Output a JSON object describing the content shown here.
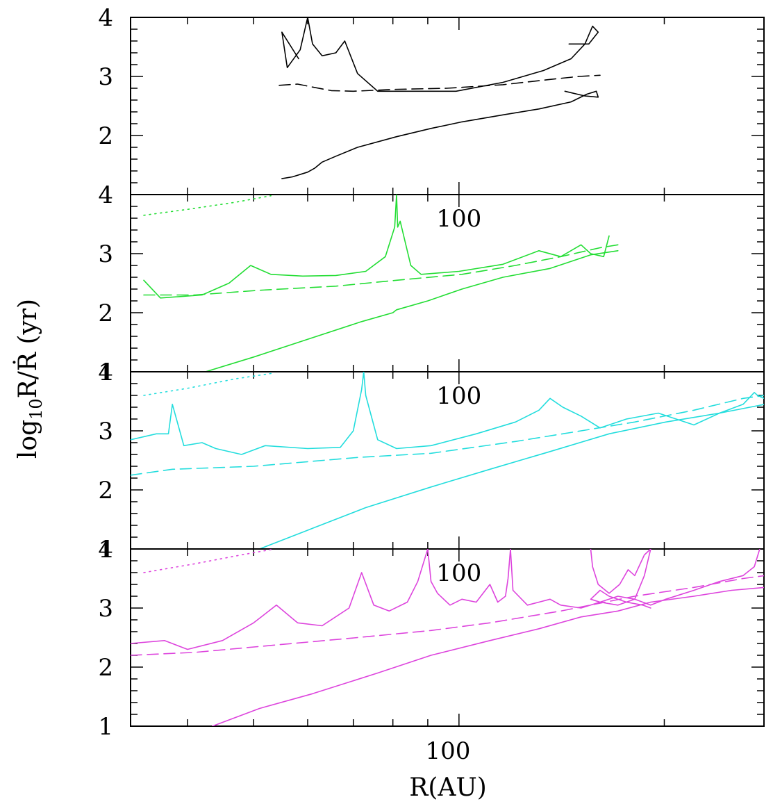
{
  "chart_data": [
    {
      "type": "line",
      "panel": 1,
      "color": "#000000",
      "xscale": "log",
      "xlim": [
        33,
        280
      ],
      "ylim": [
        1,
        4
      ],
      "x_tick_labels": [],
      "y_tick_labels": [
        "2",
        "3",
        "4"
      ],
      "series": [
        {
          "name": "upper",
          "style": "solid",
          "points": [
            [
              55,
              3.75
            ],
            [
              56,
              3.15
            ],
            [
              58.5,
              3.45
            ],
            [
              60,
              4.0
            ],
            [
              61,
              3.55
            ],
            [
              63,
              3.35
            ],
            [
              66,
              3.4
            ],
            [
              68,
              3.6
            ],
            [
              71,
              3.05
            ],
            [
              76,
              2.75
            ],
            [
              86,
              2.75
            ],
            [
              99,
              2.75
            ],
            [
              116,
              2.9
            ],
            [
              133,
              3.1
            ],
            [
              146,
              3.3
            ],
            [
              153,
              3.55
            ],
            [
              157,
              3.85
            ],
            [
              160,
              3.75
            ],
            [
              155,
              3.55
            ],
            [
              145,
              3.55
            ]
          ]
        },
        {
          "name": "upper-diagonal",
          "style": "solid",
          "points": [
            [
              55,
              3.75
            ],
            [
              58.2,
              3.3
            ]
          ]
        },
        {
          "name": "dashed",
          "style": "dashed",
          "points": [
            [
              54.5,
              2.85
            ],
            [
              58,
              2.87
            ],
            [
              61,
              2.82
            ],
            [
              65,
              2.76
            ],
            [
              70,
              2.75
            ],
            [
              80,
              2.78
            ],
            [
              96,
              2.8
            ],
            [
              116,
              2.86
            ],
            [
              136,
              2.95
            ],
            [
              150,
              3.0
            ],
            [
              161,
              3.02
            ]
          ]
        },
        {
          "name": "lower",
          "style": "solid",
          "points": [
            [
              55,
              1.27
            ],
            [
              57,
              1.3
            ],
            [
              60,
              1.38
            ],
            [
              61.5,
              1.45
            ],
            [
              63,
              1.55
            ],
            [
              66,
              1.65
            ],
            [
              71,
              1.8
            ],
            [
              81,
              1.98
            ],
            [
              91,
              2.12
            ],
            [
              101,
              2.23
            ],
            [
              116,
              2.35
            ],
            [
              131,
              2.45
            ],
            [
              146,
              2.57
            ],
            [
              154,
              2.7
            ],
            [
              159,
              2.75
            ],
            [
              160,
              2.65
            ],
            [
              153,
              2.67
            ],
            [
              143,
              2.75
            ]
          ]
        }
      ]
    },
    {
      "type": "line",
      "panel": 2,
      "color": "#22dd33",
      "xscale": "log",
      "xlim": [
        33,
        280
      ],
      "ylim": [
        1,
        4
      ],
      "x_tick_labels": [
        "100"
      ],
      "y_tick_labels": [
        "1",
        "2",
        "3",
        "4"
      ],
      "series": [
        {
          "name": "dotted",
          "style": "dotted",
          "points": [
            [
              34.5,
              3.65
            ],
            [
              40,
              3.75
            ],
            [
              47,
              3.87
            ],
            [
              53,
              3.98
            ]
          ]
        },
        {
          "name": "upper",
          "style": "solid",
          "points": [
            [
              34.5,
              2.55
            ],
            [
              36.5,
              2.25
            ],
            [
              42,
              2.3
            ],
            [
              46,
              2.5
            ],
            [
              49.5,
              2.8
            ],
            [
              53,
              2.65
            ],
            [
              59,
              2.62
            ],
            [
              66,
              2.63
            ],
            [
              73,
              2.7
            ],
            [
              78,
              2.95
            ],
            [
              80.5,
              3.45
            ],
            [
              81,
              4.0
            ],
            [
              81.3,
              3.45
            ],
            [
              82,
              3.55
            ],
            [
              85,
              2.8
            ],
            [
              88,
              2.65
            ],
            [
              100,
              2.7
            ],
            [
              116,
              2.82
            ],
            [
              131,
              3.05
            ],
            [
              141,
              2.95
            ],
            [
              151,
              3.15
            ],
            [
              156,
              3.0
            ],
            [
              163,
              2.95
            ],
            [
              166,
              3.3
            ]
          ]
        },
        {
          "name": "dashed",
          "style": "dashed",
          "points": [
            [
              34.5,
              2.3
            ],
            [
              41,
              2.3
            ],
            [
              51,
              2.38
            ],
            [
              66,
              2.45
            ],
            [
              81,
              2.55
            ],
            [
              101,
              2.65
            ],
            [
              121,
              2.8
            ],
            [
              141,
              2.95
            ],
            [
              161,
              3.1
            ],
            [
              171,
              3.15
            ]
          ]
        },
        {
          "name": "lower",
          "style": "solid",
          "points": [
            [
              42.5,
              1.0
            ],
            [
              50,
              1.25
            ],
            [
              60,
              1.55
            ],
            [
              72,
              1.85
            ],
            [
              80,
              2.0
            ],
            [
              81,
              2.05
            ],
            [
              90,
              2.2
            ],
            [
              101,
              2.4
            ],
            [
              116,
              2.6
            ],
            [
              136,
              2.75
            ],
            [
              156,
              2.98
            ],
            [
              171,
              3.05
            ]
          ]
        }
      ]
    },
    {
      "type": "line",
      "panel": 3,
      "color": "#22dddd",
      "xscale": "log",
      "xlim": [
        33,
        280
      ],
      "ylim": [
        1,
        4
      ],
      "x_tick_labels": [
        "100"
      ],
      "y_tick_labels": [
        "1",
        "2",
        "3",
        "4"
      ],
      "series": [
        {
          "name": "dotted",
          "style": "dotted",
          "points": [
            [
              34.5,
              3.6
            ],
            [
              40,
              3.72
            ],
            [
              47,
              3.88
            ],
            [
              53,
              3.97
            ]
          ]
        },
        {
          "name": "upper",
          "style": "solid",
          "points": [
            [
              33,
              2.85
            ],
            [
              36,
              2.95
            ],
            [
              37.5,
              2.95
            ],
            [
              38,
              3.45
            ],
            [
              39.5,
              2.75
            ],
            [
              42,
              2.8
            ],
            [
              44,
              2.7
            ],
            [
              48,
              2.6
            ],
            [
              52,
              2.75
            ],
            [
              60,
              2.7
            ],
            [
              67,
              2.72
            ],
            [
              70,
              3.0
            ],
            [
              72,
              3.7
            ],
            [
              72.5,
              4.0
            ],
            [
              73,
              3.6
            ],
            [
              76,
              2.85
            ],
            [
              81,
              2.7
            ],
            [
              91,
              2.75
            ],
            [
              106,
              2.95
            ],
            [
              121,
              3.15
            ],
            [
              131,
              3.35
            ],
            [
              136,
              3.55
            ],
            [
              142,
              3.4
            ],
            [
              151,
              3.25
            ],
            [
              161,
              3.05
            ],
            [
              176,
              3.2
            ],
            [
              196,
              3.3
            ],
            [
              221,
              3.1
            ],
            [
              241,
              3.3
            ],
            [
              261,
              3.45
            ],
            [
              271,
              3.65
            ],
            [
              274,
              3.6
            ],
            [
              280,
              3.55
            ]
          ]
        },
        {
          "name": "dashed",
          "style": "dashed",
          "points": [
            [
              33,
              2.25
            ],
            [
              38,
              2.35
            ],
            [
              50,
              2.4
            ],
            [
              71,
              2.55
            ],
            [
              91,
              2.62
            ],
            [
              121,
              2.82
            ],
            [
              151,
              3.0
            ],
            [
              181,
              3.15
            ],
            [
              221,
              3.35
            ],
            [
              261,
              3.55
            ],
            [
              281,
              3.6
            ]
          ]
        },
        {
          "name": "lower",
          "style": "solid",
          "points": [
            [
              51,
              1.0
            ],
            [
              61,
              1.35
            ],
            [
              73,
              1.7
            ],
            [
              91,
              2.05
            ],
            [
              111,
              2.35
            ],
            [
              136,
              2.65
            ],
            [
              166,
              2.95
            ],
            [
              201,
              3.15
            ],
            [
              241,
              3.3
            ],
            [
              281,
              3.45
            ]
          ]
        }
      ]
    },
    {
      "type": "line",
      "panel": 4,
      "color": "#dd44dd",
      "xscale": "log",
      "xlim": [
        33,
        280
      ],
      "ylim": [
        1,
        4
      ],
      "x_tick_labels": [
        "100"
      ],
      "y_tick_labels": [
        "1",
        "2",
        "3",
        "4"
      ],
      "series": [
        {
          "name": "dotted",
          "style": "dotted",
          "points": [
            [
              34.5,
              3.6
            ],
            [
              41,
              3.75
            ],
            [
              48,
              3.9
            ],
            [
              53,
              3.99
            ]
          ]
        },
        {
          "name": "upper",
          "style": "solid",
          "points": [
            [
              33,
              2.4
            ],
            [
              37,
              2.45
            ],
            [
              40,
              2.3
            ],
            [
              45,
              2.45
            ],
            [
              50,
              2.75
            ],
            [
              54,
              3.05
            ],
            [
              58,
              2.75
            ],
            [
              63,
              2.7
            ],
            [
              69,
              3.0
            ],
            [
              72,
              3.6
            ],
            [
              75,
              3.05
            ],
            [
              79,
              2.95
            ],
            [
              84,
              3.1
            ],
            [
              87,
              3.45
            ],
            [
              90,
              4.0
            ],
            [
              91,
              3.45
            ],
            [
              93,
              3.25
            ],
            [
              97,
              3.05
            ],
            [
              101,
              3.15
            ],
            [
              106,
              3.1
            ],
            [
              111,
              3.4
            ],
            [
              114,
              3.1
            ],
            [
              117,
              3.2
            ],
            [
              118,
              3.5
            ],
            [
              119,
              4.0
            ],
            [
              120,
              3.3
            ],
            [
              126,
              3.05
            ],
            [
              131,
              3.1
            ],
            [
              136,
              3.15
            ],
            [
              141,
              3.05
            ],
            [
              151,
              3.0
            ],
            [
              161,
              3.1
            ],
            [
              171,
              3.2
            ],
            [
              181,
              3.15
            ],
            [
              191,
              3.05
            ],
            [
              201,
              3.15
            ],
            [
              221,
              3.3
            ],
            [
              241,
              3.45
            ],
            [
              261,
              3.55
            ],
            [
              271,
              3.7
            ],
            [
              276,
              4.0
            ]
          ]
        },
        {
          "name": "loop",
          "style": "solid",
          "points": [
            [
              156,
              4.0
            ],
            [
              157,
              3.7
            ],
            [
              160,
              3.4
            ],
            [
              166,
              3.25
            ],
            [
              172,
              3.4
            ],
            [
              177,
              3.65
            ],
            [
              181,
              3.55
            ],
            [
              187,
              3.9
            ],
            [
              191,
              4.0
            ],
            [
              187,
              3.55
            ],
            [
              181,
              3.15
            ],
            [
              171,
              3.05
            ],
            [
              161,
              3.1
            ],
            [
              156,
              3.15
            ],
            [
              161,
              3.3
            ],
            [
              166,
              3.2
            ],
            [
              176,
              3.1
            ],
            [
              186,
              3.05
            ],
            [
              191,
              3.0
            ]
          ]
        },
        {
          "name": "dashed",
          "style": "dashed",
          "points": [
            [
              33,
              2.2
            ],
            [
              41,
              2.25
            ],
            [
              51,
              2.35
            ],
            [
              71,
              2.5
            ],
            [
              91,
              2.62
            ],
            [
              111,
              2.75
            ],
            [
              141,
              2.95
            ],
            [
              181,
              3.2
            ],
            [
              221,
              3.35
            ],
            [
              261,
              3.5
            ],
            [
              281,
              3.55
            ]
          ]
        },
        {
          "name": "lower",
          "style": "solid",
          "points": [
            [
              43.5,
              1.0
            ],
            [
              51,
              1.3
            ],
            [
              61,
              1.55
            ],
            [
              76,
              1.9
            ],
            [
              91,
              2.2
            ],
            [
              111,
              2.45
            ],
            [
              131,
              2.65
            ],
            [
              151,
              2.85
            ],
            [
              171,
              2.95
            ],
            [
              191,
              3.1
            ],
            [
              221,
              3.2
            ],
            [
              251,
              3.3
            ],
            [
              281,
              3.35
            ]
          ]
        }
      ]
    }
  ],
  "xlabel": "R(AU)",
  "xlabel_tick": "100",
  "ylabel": {
    "prefix": "log",
    "subscript": "10",
    "body": "R/Ṙ (yr)"
  }
}
